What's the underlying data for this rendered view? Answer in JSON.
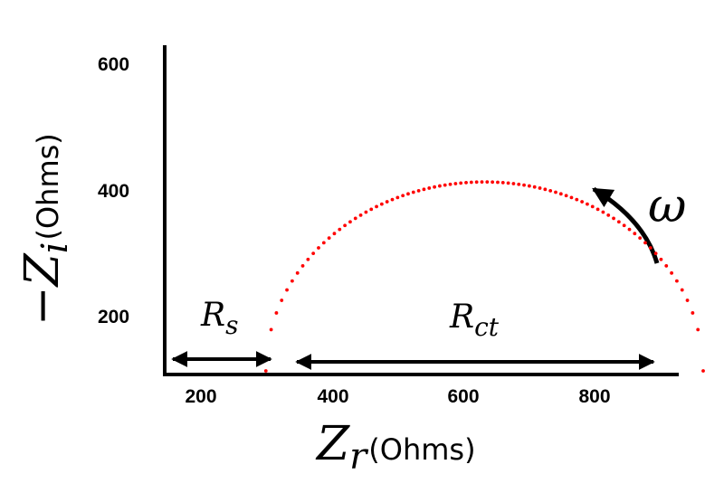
{
  "chart_data": {
    "type": "scatter",
    "title": "",
    "xlabel": {
      "symbol": "Z",
      "subscript": "r",
      "unit": "(Ohms)"
    },
    "ylabel": {
      "prefix": "−",
      "symbol": "Z",
      "subscript": "i",
      "unit": "(Ohms)"
    },
    "xticks": [
      "200",
      "400",
      "600",
      "800"
    ],
    "yticks": [
      "200",
      "400",
      "600"
    ],
    "xlim": [
      150,
      950
    ],
    "ylim": [
      110,
      630
    ],
    "grid": false,
    "series": [
      {
        "color": "#ff0000",
        "marker": "dot",
        "semicircle": {
          "x_start": 330,
          "x_end": 935,
          "y_base": 110,
          "y_peak": 410
        },
        "n_points": 84
      }
    ],
    "annotations": {
      "rs": {
        "symbol": "R",
        "subscript": "s",
        "x_from": 158,
        "x_to": 315,
        "y": 120
      },
      "rct": {
        "symbol": "R",
        "subscript": "ct",
        "x_from": 348,
        "x_to": 928,
        "y": 120
      },
      "omega": {
        "text": "ω"
      }
    }
  }
}
